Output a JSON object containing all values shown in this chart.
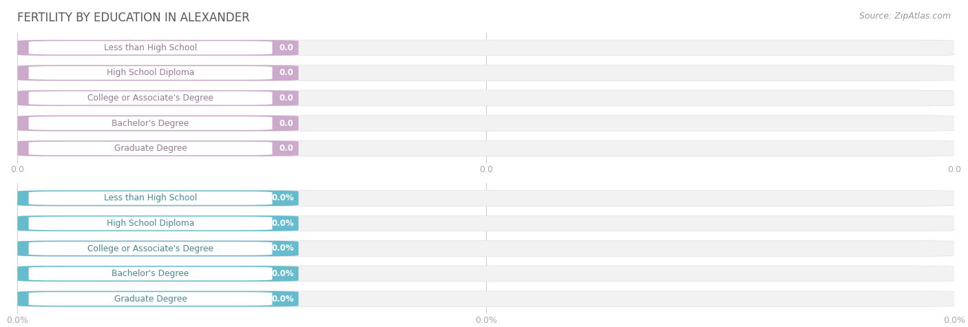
{
  "title": "FERTILITY BY EDUCATION IN ALEXANDER",
  "source": "Source: ZipAtlas.com",
  "categories": [
    "Less than High School",
    "High School Diploma",
    "College or Associate's Degree",
    "Bachelor's Degree",
    "Graduate Degree"
  ],
  "values_top": [
    0.0,
    0.0,
    0.0,
    0.0,
    0.0
  ],
  "values_bottom": [
    0.0,
    0.0,
    0.0,
    0.0,
    0.0
  ],
  "bar_color_top": "#ccaacc",
  "bar_color_bottom": "#66bbcc",
  "label_text_color_top": "#997799",
  "label_text_color_bottom": "#448899",
  "value_text_color_top": "#ffffff",
  "value_text_color_bottom": "#ffffff",
  "tick_color": "#aaaaaa",
  "title_color": "#555555",
  "source_color": "#999999",
  "bg_color": "#ffffff",
  "bar_bg_color": "#f2f2f2",
  "grid_color": "#cccccc",
  "tick_labels_top": [
    "0.0",
    "0.0",
    "0.0"
  ],
  "tick_labels_bottom": [
    "0.0%",
    "0.0%",
    "0.0%"
  ],
  "fig_width": 14.06,
  "fig_height": 4.75
}
